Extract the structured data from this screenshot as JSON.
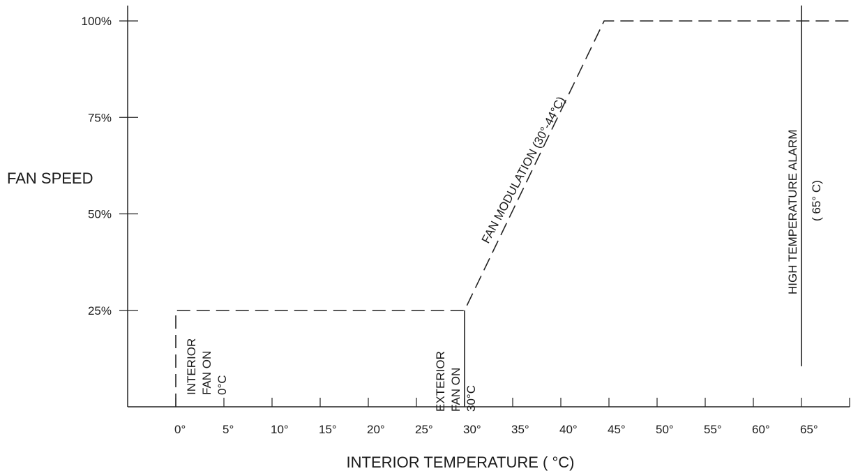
{
  "chart_data": {
    "type": "line",
    "title": "",
    "xlabel": "INTERIOR TEMPERATURE  ( °C)",
    "ylabel": "FAN SPEED",
    "xlim": [
      -5,
      70
    ],
    "ylim": [
      0,
      100
    ],
    "x_ticks": [
      0,
      5,
      10,
      15,
      20,
      25,
      30,
      35,
      40,
      45,
      50,
      55,
      60,
      65
    ],
    "x_tick_labels": [
      "0°",
      "5°",
      "10°",
      "15°",
      "20°",
      "25°",
      "30°",
      "35°",
      "40°",
      "45°",
      "50°",
      "55°",
      "60°",
      "65°"
    ],
    "y_ticks": [
      25,
      50,
      75,
      100
    ],
    "y_tick_labels": [
      "25%",
      "50%",
      "75%",
      "100%"
    ],
    "grid": false,
    "series": [
      {
        "style": "dashed",
        "x": [
          0,
          0,
          30,
          44.5,
          70
        ],
        "y": [
          0,
          25,
          25,
          100,
          100
        ]
      }
    ],
    "vertical_markers": [
      {
        "x": 30,
        "y_from": 0,
        "y_to": 25,
        "style": "solid"
      },
      {
        "x": 65,
        "y_from": 10.5,
        "y_to": 104,
        "style": "solid"
      }
    ],
    "annotations": {
      "interior_fan": [
        "INTERIOR",
        "FAN ON",
        "0°C"
      ],
      "exterior_fan": [
        "EXTERIOR",
        "FAN ON",
        "30°C"
      ],
      "fan_modulation": "FAN MODULATION  (30°-44°C)",
      "high_temp_alarm": [
        "HIGH TEMPERATURE ALARM",
        "( 65° C)"
      ]
    }
  }
}
